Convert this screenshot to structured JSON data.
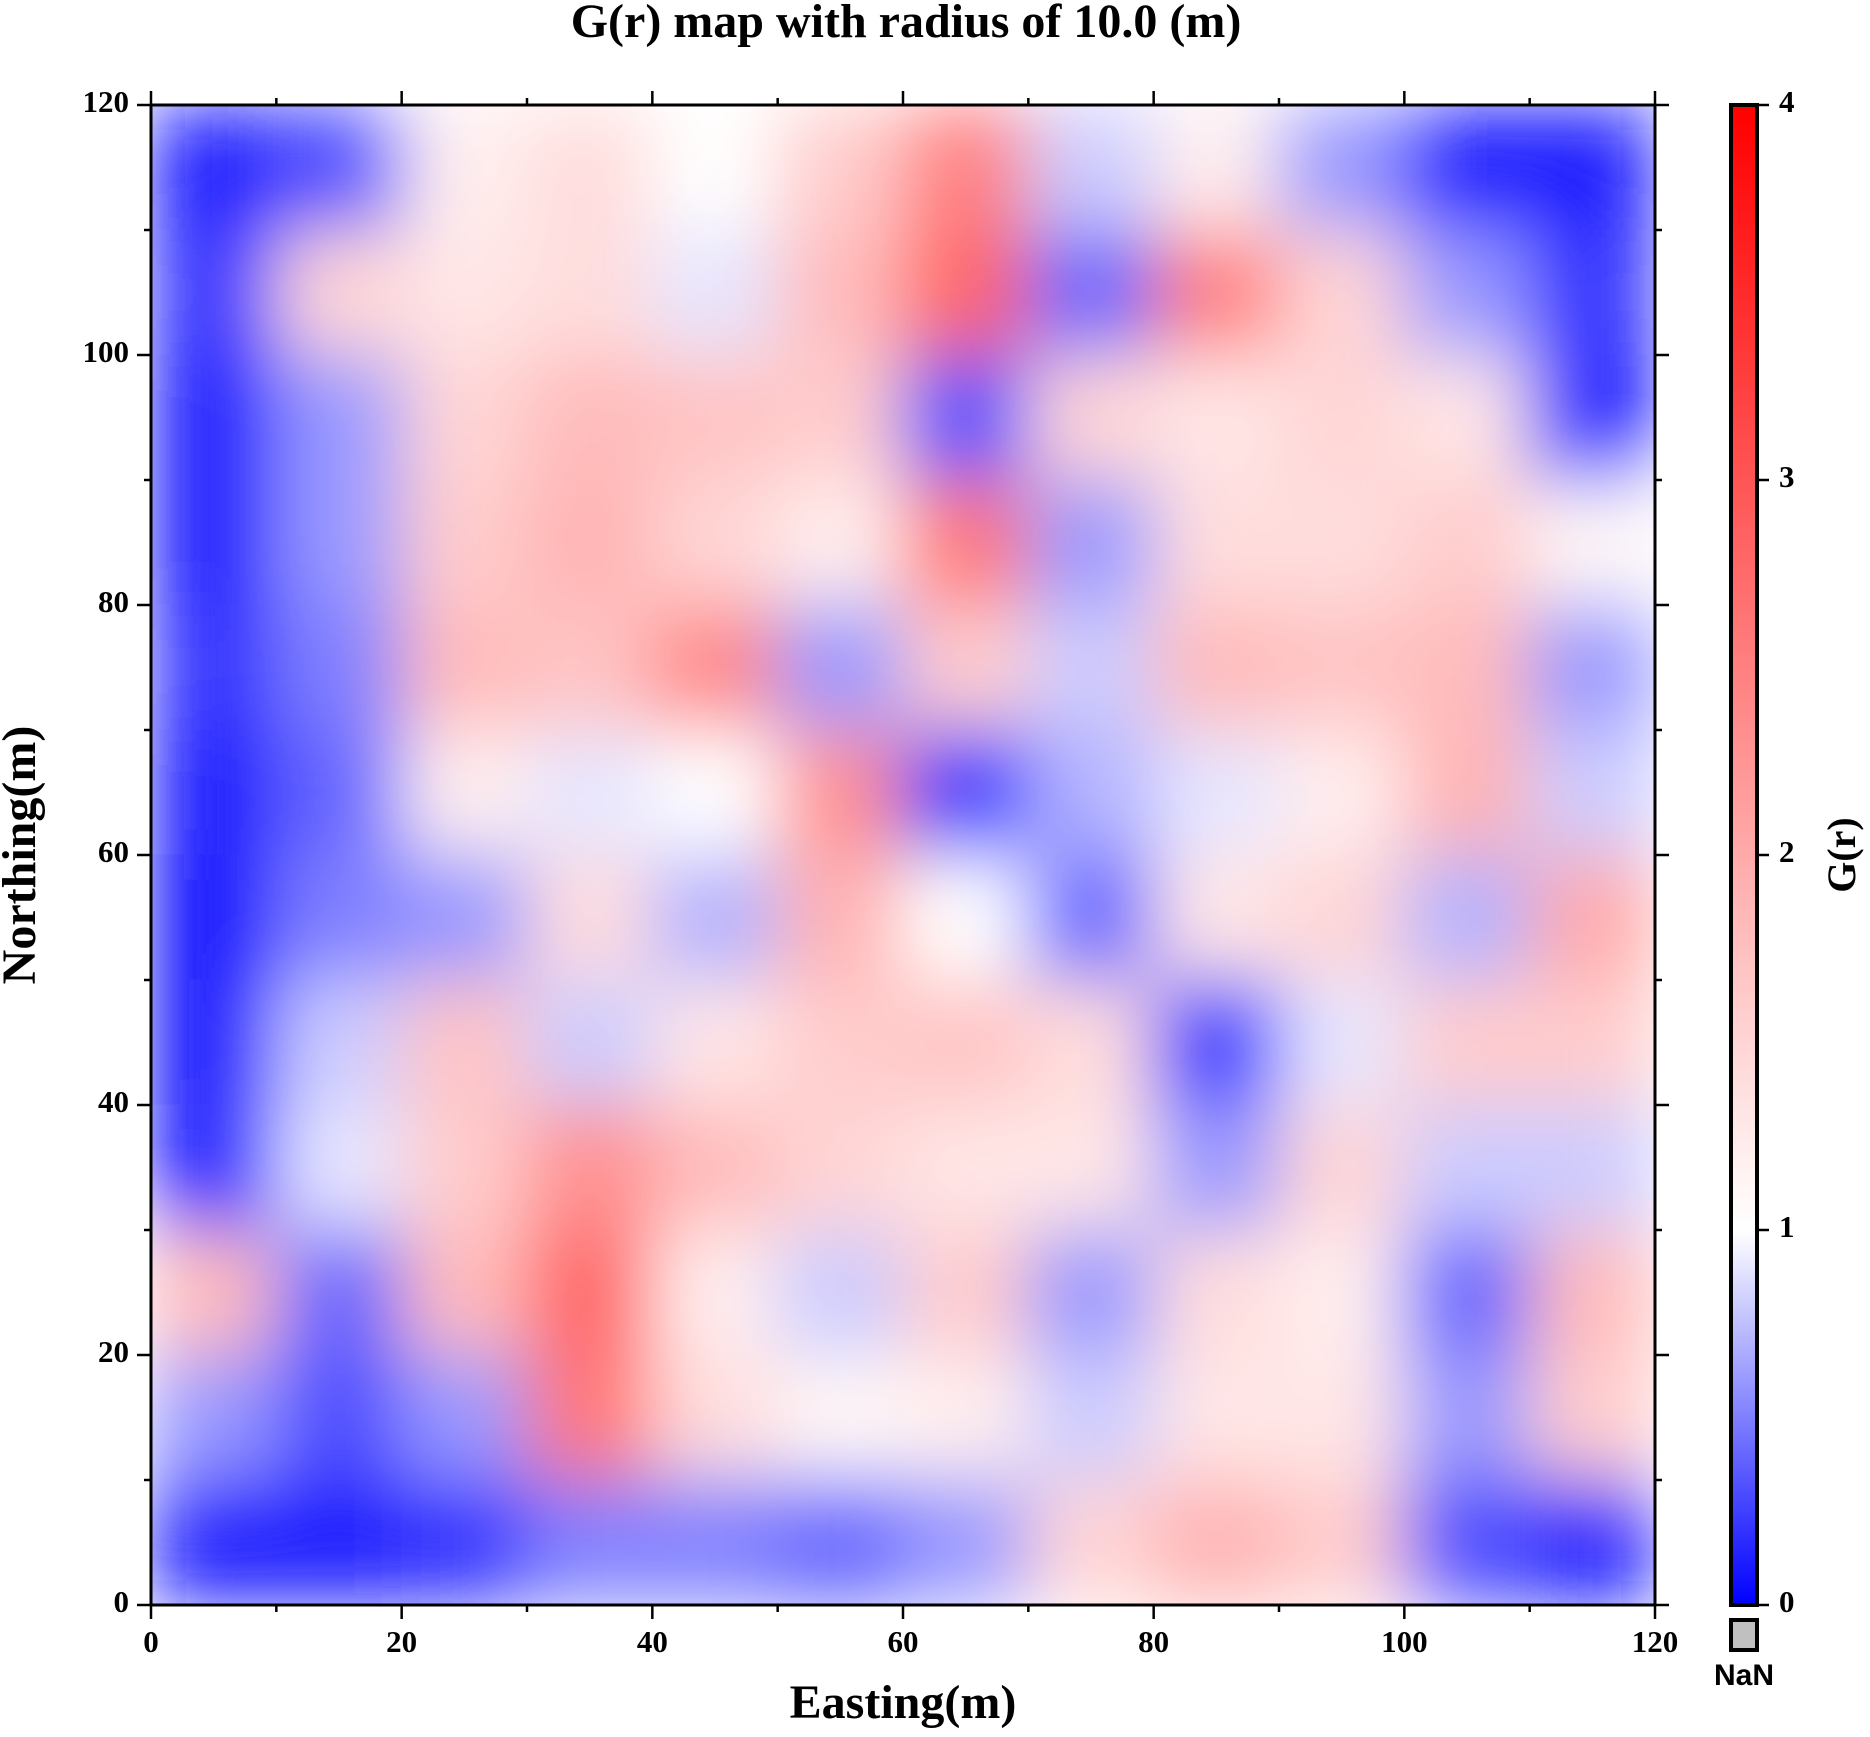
{
  "chart_data": {
    "type": "heatmap",
    "title": "G(r) map with radius of 10.0 (m)",
    "x_label": "Easting(m)",
    "y_label": "Northing(m)",
    "x": [
      5,
      15,
      25,
      35,
      45,
      55,
      65,
      75,
      85,
      95,
      105,
      115
    ],
    "y": [
      115,
      105,
      95,
      85,
      75,
      65,
      55,
      45,
      35,
      25,
      15,
      5
    ],
    "values": [
      [
        0.1,
        0.3,
        1.2,
        1.4,
        1.0,
        1.6,
        2.5,
        0.8,
        1.2,
        0.6,
        0.1,
        0.1
      ],
      [
        0.2,
        1.5,
        1.3,
        1.4,
        0.9,
        1.8,
        2.8,
        0.4,
        2.5,
        1.5,
        0.6,
        0.2
      ],
      [
        0.1,
        0.6,
        1.5,
        1.8,
        1.7,
        1.6,
        0.3,
        1.5,
        1.3,
        1.5,
        1.3,
        0.1
      ],
      [
        0.1,
        0.6,
        1.6,
        1.9,
        1.5,
        1.2,
        2.6,
        0.6,
        1.4,
        1.4,
        1.6,
        1.1
      ],
      [
        0.2,
        0.5,
        1.8,
        1.7,
        2.4,
        0.6,
        1.6,
        0.8,
        1.8,
        1.7,
        1.8,
        0.6
      ],
      [
        0.1,
        0.4,
        1.2,
        0.9,
        1.0,
        2.3,
        0.2,
        0.7,
        0.9,
        1.2,
        1.9,
        0.8
      ],
      [
        0.05,
        0.5,
        0.6,
        1.4,
        0.7,
        1.9,
        1.0,
        0.4,
        1.3,
        1.5,
        0.7,
        2.0
      ],
      [
        0.05,
        0.8,
        1.7,
        0.8,
        1.3,
        1.6,
        1.7,
        1.4,
        0.2,
        0.9,
        1.6,
        1.6
      ],
      [
        0.1,
        0.9,
        1.6,
        2.3,
        1.8,
        1.5,
        1.3,
        1.3,
        0.6,
        1.5,
        0.8,
        0.8
      ],
      [
        1.8,
        0.4,
        1.8,
        2.8,
        1.2,
        0.8,
        1.6,
        0.6,
        1.4,
        1.2,
        0.4,
        1.8
      ],
      [
        0.6,
        0.3,
        0.6,
        2.6,
        1.4,
        1.1,
        1.2,
        0.8,
        1.3,
        1.3,
        0.6,
        1.6
      ],
      [
        0.1,
        0.1,
        0.2,
        0.5,
        0.5,
        0.4,
        0.6,
        1.5,
        1.9,
        1.6,
        0.3,
        0.1
      ]
    ],
    "xlim": [
      0,
      120
    ],
    "ylim": [
      0,
      120
    ],
    "xticks": [
      0,
      20,
      40,
      60,
      80,
      100,
      120
    ],
    "yticks": [
      0,
      20,
      40,
      60,
      80,
      100,
      120
    ],
    "xminor_ticks": [
      10,
      30,
      50,
      70,
      90,
      110
    ],
    "yminor_ticks": [
      10,
      30,
      50,
      70,
      90,
      110
    ],
    "colorbar": {
      "label": "G(r)",
      "lim": [
        0,
        4
      ],
      "ticks": [
        0,
        1,
        2,
        3,
        4
      ],
      "stops": [
        {
          "value": 0,
          "color": "#0000ff"
        },
        {
          "value": 1,
          "color": "#ffffff"
        },
        {
          "value": 4,
          "color": "#ff0000"
        }
      ],
      "nan_label": "NaN",
      "nan_color": "#c0c0c0"
    }
  }
}
